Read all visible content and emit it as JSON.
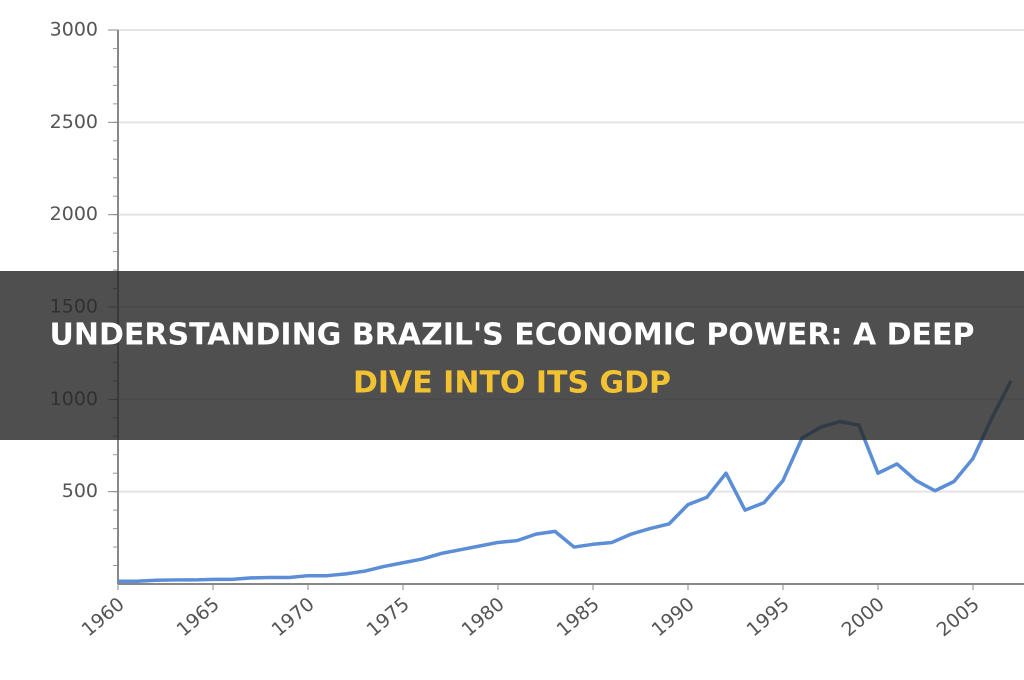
{
  "chart_data": {
    "type": "line",
    "x": [
      1960,
      1961,
      1962,
      1963,
      1964,
      1965,
      1966,
      1967,
      1968,
      1969,
      1970,
      1971,
      1972,
      1973,
      1974,
      1975,
      1976,
      1977,
      1978,
      1979,
      1980,
      1981,
      1982,
      1983,
      1984,
      1985,
      1986,
      1987,
      1988,
      1989,
      1990,
      1991,
      1992,
      1993,
      1994,
      1995,
      1996,
      1997,
      1998,
      1999,
      2000,
      2001,
      2002,
      2003,
      2004,
      2005,
      2006,
      2007
    ],
    "series": [
      {
        "color": "#5b8ed6",
        "values": [
          15,
          15,
          20,
          22,
          22,
          25,
          25,
          33,
          35,
          35,
          45,
          45,
          55,
          70,
          95,
          115,
          135,
          165,
          185,
          205,
          225,
          235,
          270,
          285,
          200,
          215,
          225,
          270,
          300,
          325,
          430,
          470,
          600,
          400,
          440,
          560,
          790,
          850,
          880,
          860,
          600,
          650,
          560,
          505,
          555,
          680,
          900,
          1100
        ]
      }
    ],
    "xlim": [
      1960,
      2008
    ],
    "xticks": [
      1960,
      1965,
      1970,
      1975,
      1980,
      1985,
      1990,
      1995,
      2000,
      2005
    ],
    "ylim": [
      0,
      3000
    ],
    "yticks": [
      500,
      1000,
      1500,
      2000,
      2500,
      3000
    ],
    "grid": true
  },
  "banner": {
    "lines": [
      "UNDERSTANDING BRAZIL'S ECONOMIC POWER: A DEEP",
      "DIVE INTO ITS GDP"
    ]
  }
}
